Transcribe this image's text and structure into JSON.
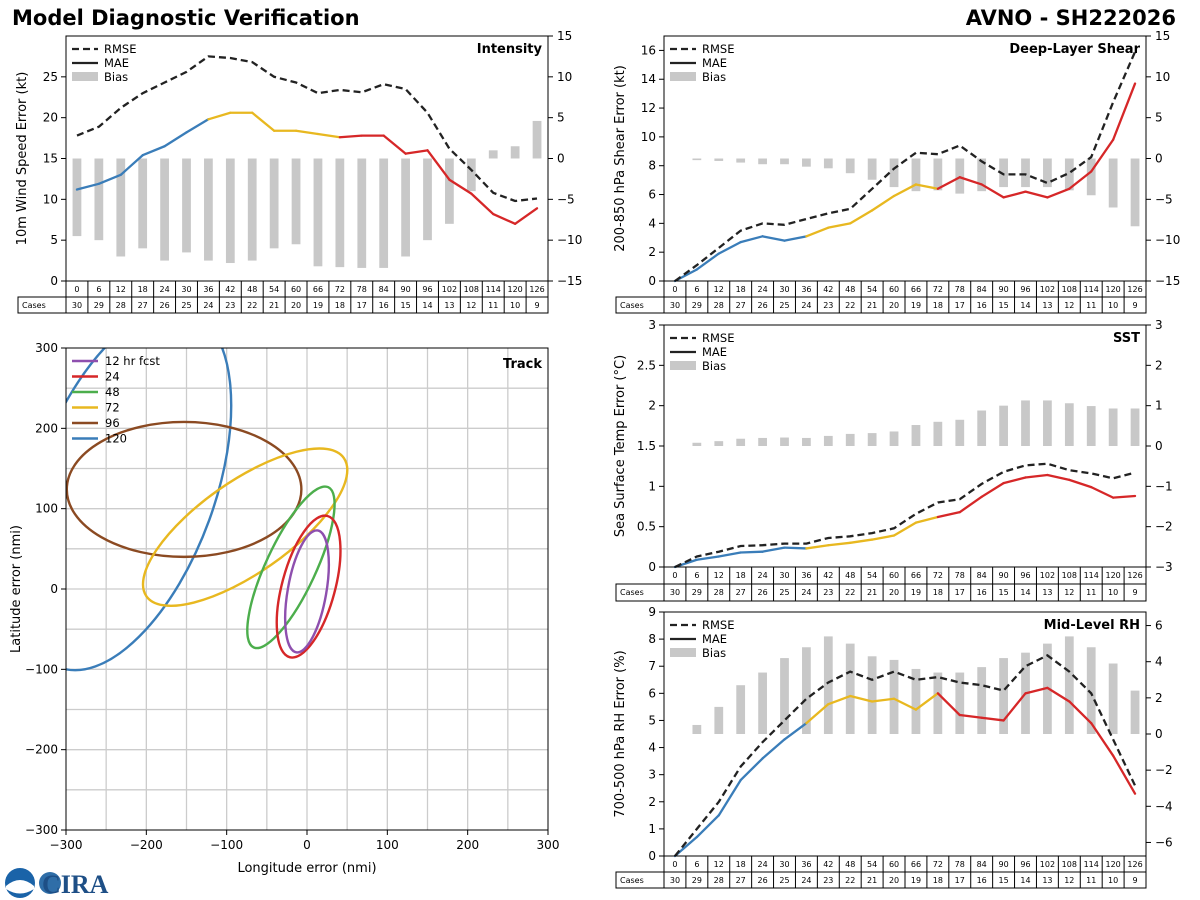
{
  "header": {
    "title_left": "Model Diagnostic Verification",
    "title_right": "AVNO - SH222026"
  },
  "common": {
    "hours": [
      0,
      6,
      12,
      18,
      24,
      30,
      36,
      42,
      48,
      54,
      60,
      66,
      72,
      78,
      84,
      90,
      96,
      102,
      108,
      114,
      120,
      126
    ],
    "cases": [
      30,
      29,
      28,
      27,
      26,
      25,
      24,
      23,
      22,
      21,
      20,
      19,
      18,
      17,
      16,
      15,
      14,
      13,
      12,
      11,
      10,
      9
    ],
    "cases_label": "Cases",
    "legend": [
      "RMSE",
      "MAE",
      "Bias"
    ],
    "colors": {
      "early": "#3a7db9",
      "mid": "#e8b820",
      "late": "#d62728",
      "rmse": "#222222",
      "bias": "#c8c8c8"
    }
  },
  "chart_data": [
    {
      "id": "intensity",
      "type": "line",
      "title": "Intensity",
      "ylabel": "10m Wind Speed Error (kt)",
      "ylim": [
        0,
        30
      ],
      "yticks": [
        0,
        5,
        10,
        15,
        20,
        25
      ],
      "y2lim": [
        -15,
        15
      ],
      "y2ticks": [
        -15,
        -10,
        -5,
        0,
        5,
        10,
        15
      ],
      "rmse": [
        17.8,
        18.9,
        21.2,
        23.0,
        24.3,
        25.6,
        27.5,
        27.3,
        26.8,
        25.0,
        24.3,
        23.0,
        23.4,
        23.1,
        24.1,
        23.5,
        20.6,
        16.2,
        13.6,
        10.8,
        9.8,
        10.1
      ],
      "mae": [
        11.2,
        11.9,
        13.0,
        15.4,
        16.5,
        18.2,
        19.8,
        20.6,
        20.6,
        18.4,
        18.4,
        18.0,
        17.6,
        17.8,
        17.8,
        15.6,
        16.0,
        12.4,
        10.7,
        8.2,
        7.0,
        8.9
      ],
      "bias": [
        -9.5,
        -10.0,
        -12.0,
        -11.0,
        -12.5,
        -11.5,
        -12.5,
        -12.8,
        -12.5,
        -11.0,
        -10.5,
        -13.2,
        -13.3,
        -13.4,
        -13.4,
        -12.0,
        -10.0,
        -8.0,
        -4.0,
        1.0,
        1.5,
        4.6
      ]
    },
    {
      "id": "shear",
      "type": "line",
      "title": "Deep-Layer Shear",
      "ylabel": "200-850 hPa Shear Error (kt)",
      "ylim": [
        0,
        17
      ],
      "yticks": [
        0,
        2,
        4,
        6,
        8,
        10,
        12,
        14,
        16
      ],
      "y2lim": [
        -15,
        15
      ],
      "y2ticks": [
        -15,
        -10,
        -5,
        0,
        5,
        10,
        15
      ],
      "rmse": [
        0.0,
        1.1,
        2.3,
        3.5,
        4.0,
        3.9,
        4.3,
        4.7,
        5.0,
        6.4,
        7.8,
        8.9,
        8.8,
        9.4,
        8.3,
        7.4,
        7.4,
        6.8,
        7.5,
        8.6,
        12.4,
        15.9
      ],
      "mae": [
        0.0,
        0.8,
        1.9,
        2.7,
        3.1,
        2.8,
        3.1,
        3.7,
        4.0,
        4.9,
        5.9,
        6.7,
        6.4,
        7.2,
        6.7,
        5.8,
        6.2,
        5.8,
        6.4,
        7.6,
        9.8,
        13.7
      ],
      "bias": [
        0.0,
        -0.2,
        -0.3,
        -0.5,
        -0.7,
        -0.7,
        -1.0,
        -1.2,
        -1.8,
        -2.6,
        -3.5,
        -4.0,
        -3.9,
        -4.3,
        -4.0,
        -3.5,
        -3.5,
        -3.5,
        -3.9,
        -4.5,
        -6.0,
        -8.3
      ]
    },
    {
      "id": "sst",
      "type": "line",
      "title": "SST",
      "ylabel": "Sea Surface Temp Error (°C)",
      "ylim": [
        0,
        3
      ],
      "yticks": [
        0.0,
        0.5,
        1.0,
        1.5,
        2.0,
        2.5,
        3.0
      ],
      "y2lim": [
        -3,
        3
      ],
      "y2ticks": [
        -3,
        -2,
        -1,
        0,
        1,
        2,
        3
      ],
      "rmse": [
        0.0,
        0.13,
        0.19,
        0.26,
        0.27,
        0.29,
        0.29,
        0.36,
        0.38,
        0.42,
        0.48,
        0.66,
        0.8,
        0.84,
        1.03,
        1.18,
        1.26,
        1.28,
        1.2,
        1.16,
        1.1,
        1.17
      ],
      "mae": [
        0.0,
        0.09,
        0.13,
        0.18,
        0.19,
        0.24,
        0.23,
        0.27,
        0.3,
        0.34,
        0.39,
        0.55,
        0.62,
        0.68,
        0.87,
        1.04,
        1.11,
        1.14,
        1.08,
        0.99,
        0.86,
        0.88
      ],
      "bias": [
        0.0,
        0.08,
        0.12,
        0.18,
        0.2,
        0.21,
        0.2,
        0.25,
        0.3,
        0.32,
        0.36,
        0.52,
        0.6,
        0.65,
        0.88,
        1.0,
        1.13,
        1.13,
        1.06,
        0.99,
        0.93,
        0.93
      ]
    },
    {
      "id": "rh",
      "type": "line",
      "title": "Mid-Level RH",
      "ylabel": "700-500 hPa RH Error (%)",
      "ylim": [
        0,
        9
      ],
      "yticks": [
        0,
        1,
        2,
        3,
        4,
        5,
        6,
        7,
        8,
        9
      ],
      "y2lim": [
        -6.75,
        6.75
      ],
      "y2ticks": [
        -6,
        -4,
        -2,
        0,
        2,
        4,
        6
      ],
      "rmse": [
        0.0,
        1.0,
        2.0,
        3.3,
        4.2,
        5.0,
        5.8,
        6.4,
        6.8,
        6.5,
        6.8,
        6.5,
        6.6,
        6.4,
        6.3,
        6.1,
        7.0,
        7.4,
        6.8,
        6.0,
        4.3,
        2.6
      ],
      "mae": [
        0.0,
        0.7,
        1.5,
        2.8,
        3.6,
        4.3,
        4.9,
        5.6,
        5.9,
        5.7,
        5.8,
        5.4,
        6.0,
        5.2,
        5.1,
        5.0,
        6.0,
        6.2,
        5.7,
        4.9,
        3.7,
        2.3
      ],
      "bias": [
        0.0,
        0.5,
        1.5,
        2.7,
        3.4,
        4.2,
        4.8,
        5.4,
        5.0,
        4.3,
        4.1,
        3.6,
        3.4,
        3.4,
        3.7,
        4.2,
        4.5,
        5.0,
        5.4,
        4.8,
        3.9,
        2.4
      ]
    },
    {
      "id": "track",
      "type": "scatter",
      "title": "Track",
      "xlabel": "Longitude error (nmi)",
      "ylabel": "Latitude error (nmi)",
      "xlim": [
        -300,
        300
      ],
      "ylim": [
        -300,
        300
      ],
      "xticks": [
        -300,
        -200,
        -100,
        0,
        100,
        200,
        300
      ],
      "yticks": [
        -300,
        -200,
        -100,
        0,
        100,
        200,
        300
      ],
      "ellipses": [
        {
          "label": "12 hr fcst",
          "color": "#8e4fae",
          "cx": 0,
          "cy": -3,
          "rx": 77,
          "ry": 24,
          "angle": 80
        },
        {
          "label": "24",
          "color": "#d62728",
          "cx": 2,
          "cy": 3,
          "rx": 91,
          "ry": 33,
          "angle": 75
        },
        {
          "label": "48",
          "color": "#4cae4c",
          "cx": -20,
          "cy": 27,
          "rx": 110,
          "ry": 31,
          "angle": 65
        },
        {
          "label": "72",
          "color": "#e8b820",
          "cx": -77,
          "cy": 77,
          "rx": 150,
          "ry": 57,
          "angle": 35
        },
        {
          "label": "96",
          "color": "#8b4a22",
          "cx": -153,
          "cy": 124,
          "rx": 146,
          "ry": 84,
          "angle": 0
        },
        {
          "label": "120",
          "color": "#3a7db9",
          "cx": -227,
          "cy": 124,
          "rx": 236,
          "ry": 112,
          "angle": 70
        }
      ]
    }
  ],
  "footer": {
    "logo_text": "CIRA"
  }
}
